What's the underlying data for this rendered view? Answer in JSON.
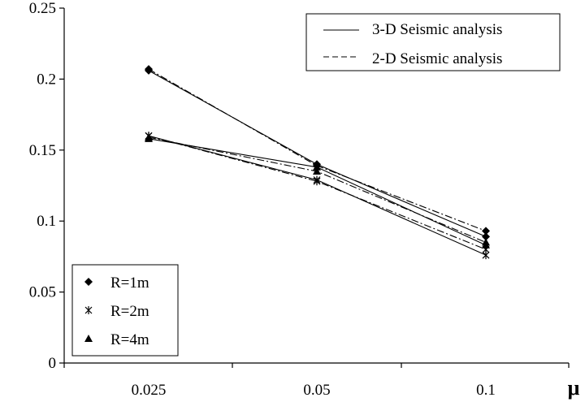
{
  "chart_data": {
    "type": "line",
    "x": [
      "0.025",
      "0.05",
      "0.1"
    ],
    "xlabel": "μ",
    "ylabel": "",
    "ylim": [
      0,
      0.25
    ],
    "yticks": [
      "0",
      "0.05",
      "0.1",
      "0.15",
      "0.2",
      "0.25"
    ],
    "grid": false,
    "series": [
      {
        "name": "R=1m",
        "analysis": "3-D Seismic analysis",
        "marker": "diamond",
        "values": [
          0.206,
          0.14,
          0.089
        ]
      },
      {
        "name": "R=1m",
        "analysis": "2-D Seismic analysis",
        "marker": "diamond",
        "values": [
          0.207,
          0.139,
          0.093
        ]
      },
      {
        "name": "R=2m",
        "analysis": "3-D Seismic analysis",
        "marker": "star",
        "values": [
          0.16,
          0.129,
          0.076
        ]
      },
      {
        "name": "R=2m",
        "analysis": "2-D Seismic analysis",
        "marker": "star",
        "values": [
          0.16,
          0.128,
          0.08
        ]
      },
      {
        "name": "R=4m",
        "analysis": "3-D Seismic analysis",
        "marker": "triangle",
        "values": [
          0.158,
          0.138,
          0.083
        ]
      },
      {
        "name": "R=4m",
        "analysis": "2-D Seismic analysis",
        "marker": "triangle",
        "values": [
          0.159,
          0.135,
          0.085
        ]
      }
    ],
    "legend_lines": {
      "position": "top-right",
      "items": [
        {
          "label": "3-D Seismic analysis",
          "style": "solid"
        },
        {
          "label": "2-D Seismic analysis",
          "style": "dashed"
        }
      ]
    },
    "legend_markers": {
      "position": "bottom-left",
      "items": [
        {
          "label": "R=1m",
          "marker": "diamond"
        },
        {
          "label": "R=2m",
          "marker": "star"
        },
        {
          "label": "R=4m",
          "marker": "triangle"
        }
      ]
    }
  }
}
